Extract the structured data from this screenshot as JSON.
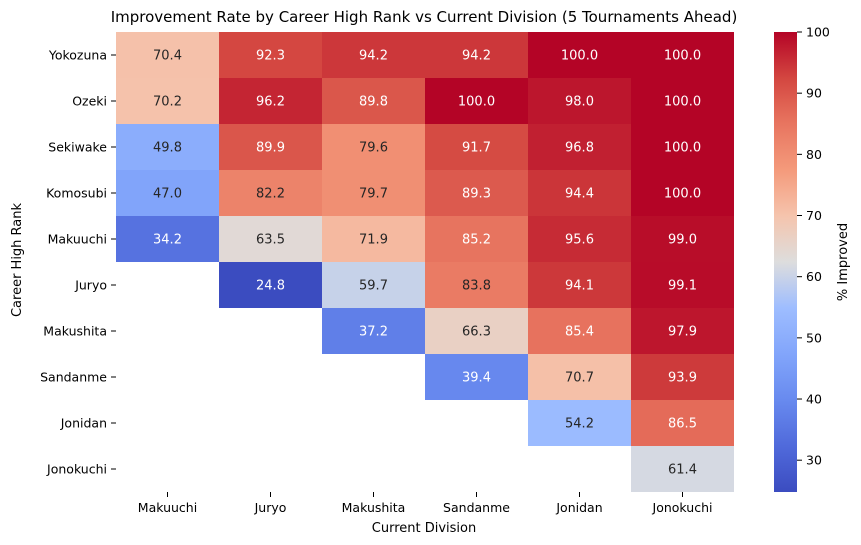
{
  "chart_data": {
    "type": "heatmap",
    "title": "Improvement Rate by Career High Rank vs Current Division (5 Tournaments Ahead)",
    "xlabel": "Current Division",
    "ylabel": "Career High Rank",
    "x_categories": [
      "Makuuchi",
      "Juryo",
      "Makushita",
      "Sandanme",
      "Jonidan",
      "Jonokuchi"
    ],
    "y_categories": [
      "Yokozuna",
      "Ozeki",
      "Sekiwake",
      "Komosubi",
      "Makuuchi",
      "Juryo",
      "Makushita",
      "Sandanme",
      "Jonidan",
      "Jonokuchi"
    ],
    "values": [
      [
        70.4,
        92.3,
        94.2,
        94.2,
        100.0,
        100.0
      ],
      [
        70.2,
        96.2,
        89.8,
        100.0,
        98.0,
        100.0
      ],
      [
        49.8,
        89.9,
        79.6,
        91.7,
        96.8,
        100.0
      ],
      [
        47.0,
        82.2,
        79.7,
        89.3,
        94.4,
        100.0
      ],
      [
        34.2,
        63.5,
        71.9,
        85.2,
        95.6,
        99.0
      ],
      [
        null,
        24.8,
        59.7,
        83.8,
        94.1,
        99.1
      ],
      [
        null,
        null,
        37.2,
        66.3,
        85.4,
        97.9
      ],
      [
        null,
        null,
        null,
        39.4,
        70.7,
        93.9
      ],
      [
        null,
        null,
        null,
        null,
        54.2,
        86.5
      ],
      [
        null,
        null,
        null,
        null,
        null,
        61.4
      ]
    ],
    "colorbar": {
      "label": "% Improved",
      "vmin": 24.8,
      "vmax": 100.0,
      "ticks": [
        30,
        40,
        50,
        60,
        70,
        80,
        90,
        100
      ],
      "colormap": "coolwarm"
    }
  }
}
